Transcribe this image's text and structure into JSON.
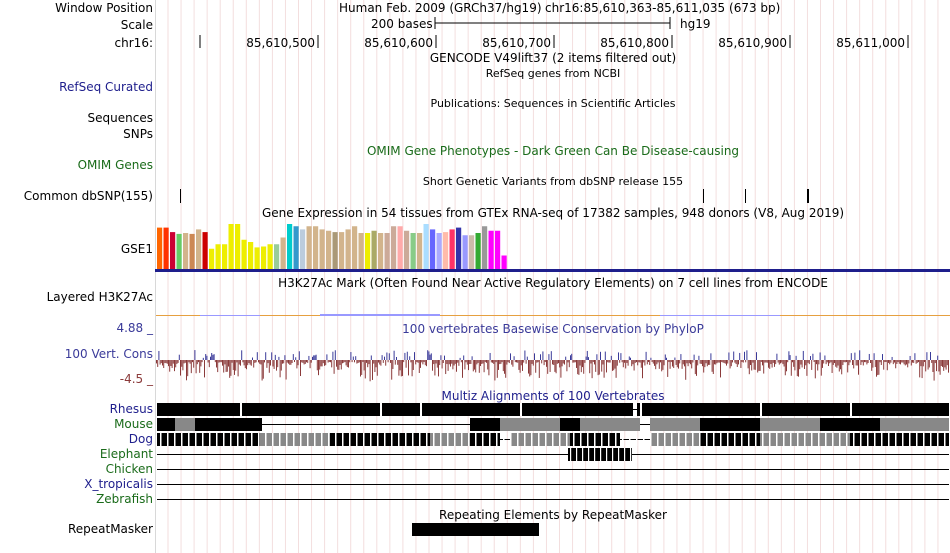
{
  "header": {
    "position_label": "Window Position",
    "assembly": "Human Feb. 2009 (GRCh37/hg19)",
    "coordinates": "chr16:85,610,363-85,611,035 (673 bp)",
    "scale_label": "Scale",
    "scale_bar_text": "200 bases",
    "scale_db": "hg19",
    "chrom_label": "chr16:",
    "ruler_ticks": [
      "85,610,500",
      "85,610,600",
      "85,610,700",
      "85,610,800",
      "85,610,900",
      "85,611,000"
    ]
  },
  "tracks": {
    "gencode": {
      "title": "GENCODE V49lift37 (2 items filtered out)"
    },
    "refseq": {
      "label": "RefSeq Curated",
      "title": "RefSeq genes from NCBI",
      "color": "#1e1e8c"
    },
    "sequences": {
      "label": "Sequences",
      "title": "Publications: Sequences in Scientific Articles"
    },
    "snps": {
      "label": "SNPs"
    },
    "omim": {
      "label": "OMIM Genes",
      "title": "OMIM Gene Phenotypes - Dark Green Can Be Disease-causing",
      "color": "#1a6b1a"
    },
    "dbsnp": {
      "label": "Common dbSNP(155)",
      "title": "Short Genetic Variants from dbSNP release 155"
    },
    "gtex": {
      "label": "GSE1",
      "title": "Gene Expression in 54 tissues from GTEx RNA-seq of 17382 samples, 948 donors (V8, Aug 2019)"
    },
    "h3k27ac": {
      "label": "Layered H3K27Ac",
      "title": "H3K27Ac Mark (Often Found Near Active Regulatory Elements) on 7 cell lines from ENCODE"
    },
    "phylop": {
      "label": "100 Vert. Cons",
      "title": "100 vertebrates Basewise Conservation by PhyloP",
      "ymax_label": "4.88 _",
      "ymin_label": "-4.5 _",
      "color": "#3a3a99",
      "neg_color": "#8b3a3a"
    },
    "multiz": {
      "title": "Multiz Alignments of 100 Vertebrates",
      "species": [
        {
          "name": "Rhesus",
          "color": "#1e1e8c"
        },
        {
          "name": "Mouse",
          "color": "#1a6b1a"
        },
        {
          "name": "Dog",
          "color": "#1e1e8c"
        },
        {
          "name": "Elephant",
          "color": "#1a6b1a"
        },
        {
          "name": "Chicken",
          "color": "#1a6b1a"
        },
        {
          "name": "X_tropicalis",
          "color": "#1e1e8c"
        },
        {
          "name": "Zebrafish",
          "color": "#1a6b1a"
        }
      ]
    },
    "repeatmasker": {
      "label": "RepeatMasker",
      "title": "Repeating Elements by RepeatMasker"
    }
  },
  "chart_data": {
    "type": "bar",
    "categories_count": 54,
    "values": [
      0.92,
      0.92,
      0.82,
      0.78,
      0.8,
      0.78,
      0.88,
      0.82,
      0.45,
      0.55,
      0.55,
      1.0,
      1.0,
      0.65,
      0.6,
      0.48,
      0.5,
      0.55,
      0.55,
      0.7,
      1.0,
      0.95,
      0.88,
      0.95,
      0.95,
      0.88,
      0.85,
      0.82,
      0.82,
      0.88,
      0.95,
      0.8,
      0.8,
      0.85,
      0.8,
      0.8,
      0.95,
      0.95,
      0.85,
      0.8,
      0.8,
      1.0,
      0.88,
      0.8,
      0.82,
      0.88,
      0.92,
      0.75,
      0.75,
      0.8,
      0.95,
      0.85,
      0.85,
      0.3
    ],
    "colors": [
      "#ff6600",
      "#ff3300",
      "#cc0033",
      "#66cc66",
      "#d2b48c",
      "#cc8855",
      "#d2b48c",
      "#cc0000",
      "#eeee00",
      "#eeee00",
      "#eeee00",
      "#eeee00",
      "#eeee00",
      "#eeee00",
      "#eeee00",
      "#eeee00",
      "#eeee00",
      "#eeee00",
      "#99cc99",
      "#d2b48c",
      "#00cccc",
      "#3399cc",
      "#bbccdd",
      "#d2b48c",
      "#d2b48c",
      "#d2b48c",
      "#d2b48c",
      "#aa9977",
      "#d2b48c",
      "#d2b48c",
      "#d2b48c",
      "#d2b48c",
      "#eeee00",
      "#aaaa66",
      "#d2b48c",
      "#ccaa99",
      "#ccaa99",
      "#ffaaaa",
      "#ccaa99",
      "#88cc88",
      "#d2b48c",
      "#aaddff",
      "#6666ff",
      "#aaaaff",
      "#ffbbaa",
      "#ff3366",
      "#3333aa",
      "#9999ff",
      "#ccbbaa",
      "#33aa33",
      "#999999",
      "#ff00ff",
      "#ff00ff",
      "#ff00ff"
    ]
  }
}
